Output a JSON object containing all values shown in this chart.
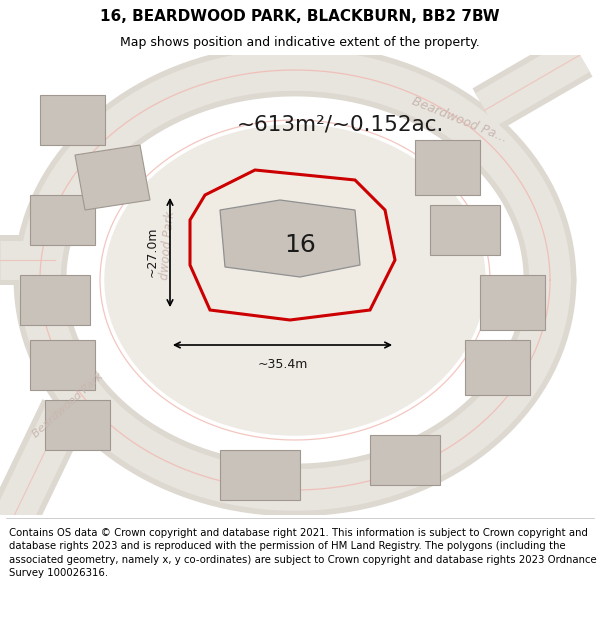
{
  "title": "16, BEARDWOOD PARK, BLACKBURN, BB2 7BW",
  "subtitle": "Map shows position and indicative extent of the property.",
  "footer": "Contains OS data © Crown copyright and database right 2021. This information is subject to Crown copyright and database rights 2023 and is reproduced with the permission of HM Land Registry. The polygons (including the associated geometry, namely x, y co-ordinates) are subject to Crown copyright and database rights 2023 Ordnance Survey 100026316.",
  "area_text": "~613m²/~0.152ac.",
  "number_text": "16",
  "dim1_text": "~27.0m",
  "dim2_text": "~35.4m",
  "bg_color": "#eeeae4",
  "road_band_outer": "#ddd8d0",
  "road_band_inner": "#e8e4de",
  "road_line_color": "#f0b8b0",
  "highlight_color": "#cc0000",
  "building_fill": "#c8c2ba",
  "building_edge": "#a09890",
  "road_label_color": "#c8b8b0",
  "title_fontsize": 11,
  "subtitle_fontsize": 9,
  "footer_fontsize": 7.3
}
